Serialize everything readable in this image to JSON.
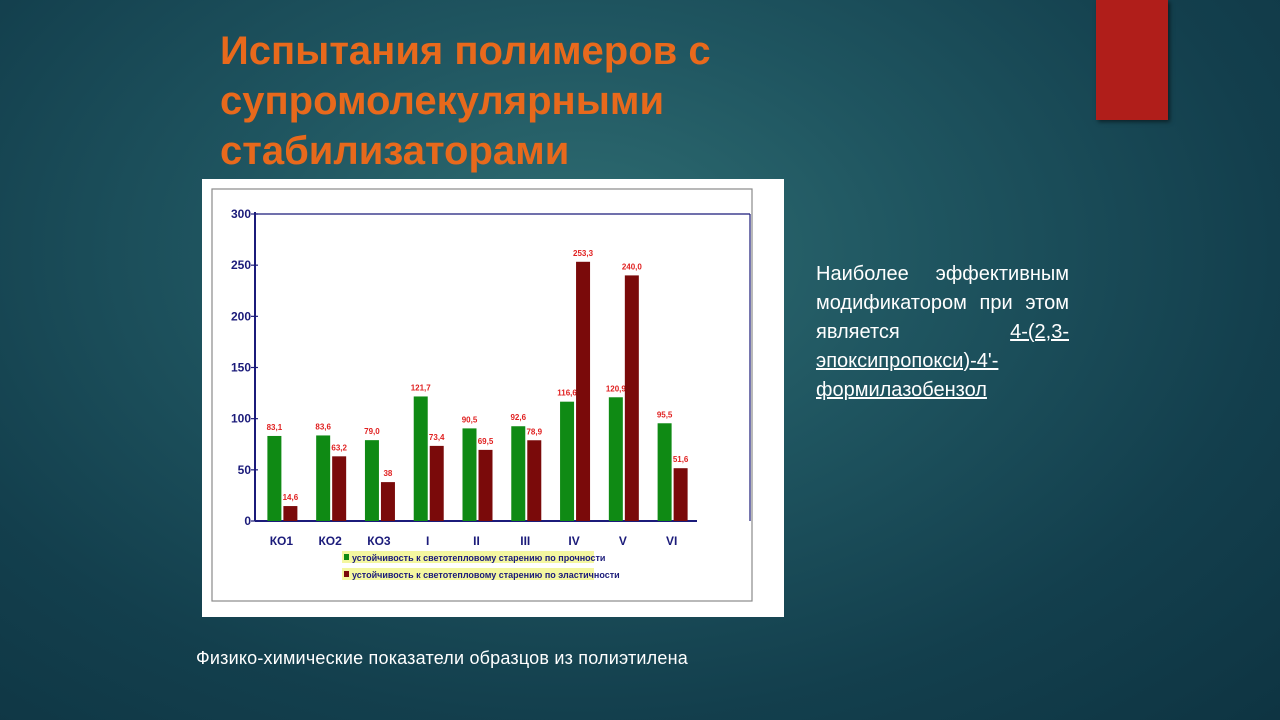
{
  "slide": {
    "title": "Испытания полимеров с супромолекулярными стабилизаторами",
    "side_text_main": "Наиболее эффективным модификатором при этом является ",
    "side_text_link": "4-(2,3-эпоксипропокси)-4'-формилазобензол",
    "caption": "Физико-химические  показатели образцов из полиэтилена",
    "accent_color": "#b01e1a",
    "title_color": "#e8691c"
  },
  "chart_data": {
    "type": "bar",
    "categories": [
      "КО1",
      "КО2",
      "КО3",
      "I",
      "II",
      "III",
      "IV",
      "V",
      "VI"
    ],
    "series": [
      {
        "name": "устойчивость к светотепловому старению по прочности",
        "color": "#0f8a14",
        "values": [
          83.1,
          83.6,
          79.0,
          121.7,
          90.5,
          92.6,
          116.6,
          120.9,
          95.5
        ],
        "labels": [
          "83,1",
          "83,6",
          "79,0",
          "121,7",
          "90,5",
          "92,6",
          "116,6",
          "120,9",
          "95,5"
        ]
      },
      {
        "name": "устойчивость к светотепловому старению по эластичности",
        "color": "#7a0a0a",
        "values": [
          14.6,
          63.2,
          38,
          73.4,
          69.5,
          78.9,
          253.3,
          240.0,
          51.6
        ],
        "labels": [
          "14,6",
          "63,2",
          "38",
          "73,4",
          "69,5",
          "78,9",
          "253,3",
          "240,0",
          "51,6"
        ]
      }
    ],
    "y_ticks": [
      "0",
      "50",
      "100",
      "150",
      "200",
      "250",
      "300"
    ],
    "ylim": [
      0,
      300
    ],
    "legend_position": "bottom",
    "label_color": "#e02020",
    "legend_highlight": "#f4f7a0"
  }
}
